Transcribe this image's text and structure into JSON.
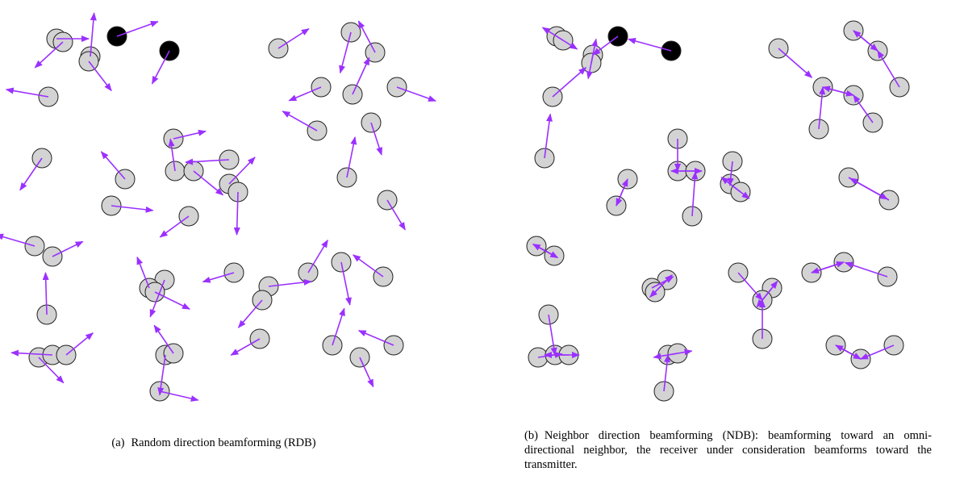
{
  "panels": [
    {
      "label": "(a)",
      "caption": "Random direction beamforming (RDB)"
    },
    {
      "label": "(b)",
      "caption": "Neighbor direction beamforming (NDB): beamforming toward an omni-directional neighbor, the receiver under consideration beamforms toward the transmitter."
    }
  ]
}
